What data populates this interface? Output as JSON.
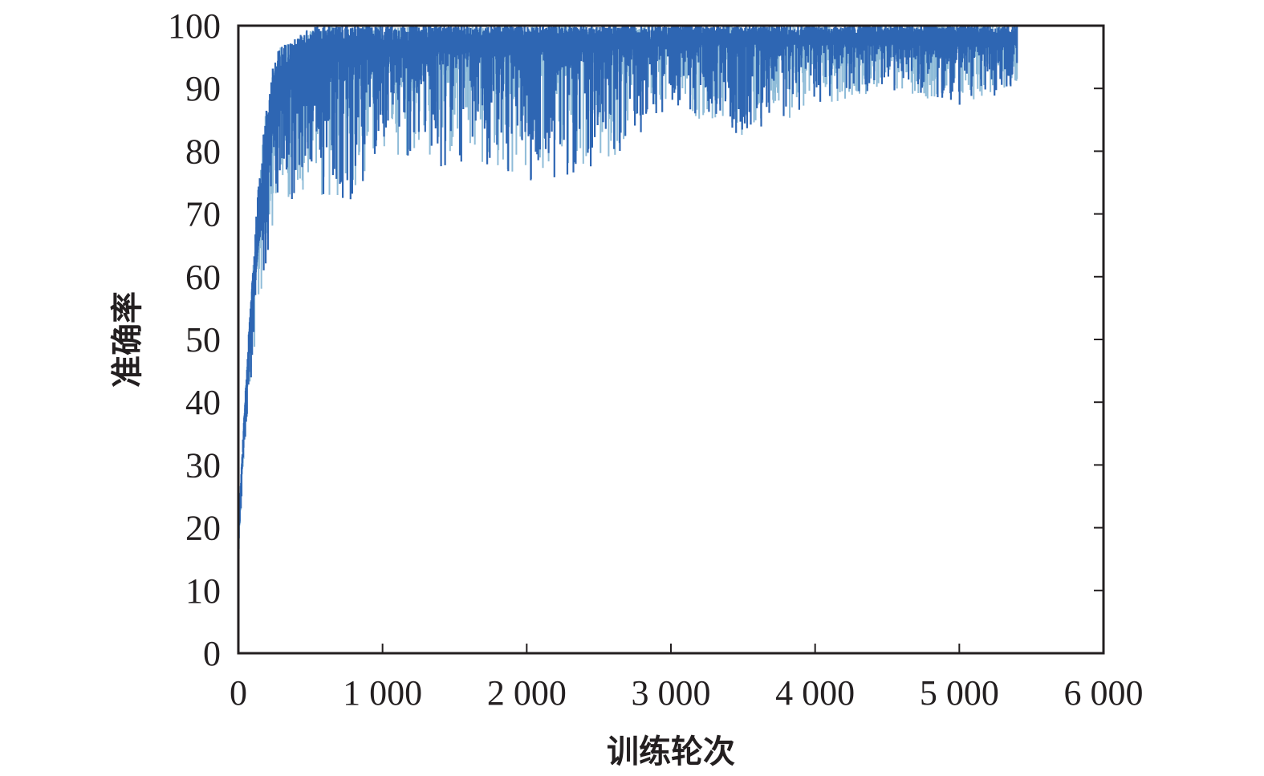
{
  "chart_data": {
    "type": "line",
    "title": "",
    "xlabel": "训练轮次",
    "ylabel": "准确率",
    "xlim": [
      0,
      6000
    ],
    "ylim": [
      0,
      100
    ],
    "xticks": [
      0,
      1000,
      2000,
      3000,
      4000,
      5000,
      6000
    ],
    "xtick_labels": [
      "0",
      "1 000",
      "2 000",
      "3 000",
      "4 000",
      "5 000",
      "6 000"
    ],
    "yticks": [
      0,
      10,
      20,
      30,
      40,
      50,
      60,
      70,
      80,
      90,
      100
    ],
    "ytick_labels": [
      "0",
      "10",
      "20",
      "30",
      "40",
      "50",
      "60",
      "70",
      "80",
      "90",
      "100"
    ],
    "grid": false,
    "legend": false,
    "series": [
      {
        "color": "#2e66b3",
        "secondary_color": "#8fbcd8",
        "description_points_x": [
          0,
          50,
          100,
          150,
          200,
          250,
          300,
          400,
          500,
          600,
          800,
          1000,
          1500,
          2000,
          2500,
          3000,
          3500,
          4000,
          4500,
          5000,
          5400
        ],
        "upper_values": [
          20,
          42,
          62,
          78,
          88,
          95,
          97,
          98,
          100,
          100,
          100,
          100,
          100,
          100,
          100,
          100,
          100,
          100,
          100,
          100,
          100
        ],
        "lower_values": [
          15,
          35,
          45,
          55,
          63,
          70,
          72,
          72,
          75,
          72,
          72,
          80,
          77,
          75,
          77,
          87,
          82,
          87,
          90,
          87,
          90
        ],
        "mean_values": [
          18,
          40,
          55,
          68,
          78,
          85,
          88,
          91,
          93,
          94,
          95,
          95,
          96,
          96,
          96,
          97,
          97,
          97,
          97,
          97,
          97
        ]
      }
    ]
  }
}
